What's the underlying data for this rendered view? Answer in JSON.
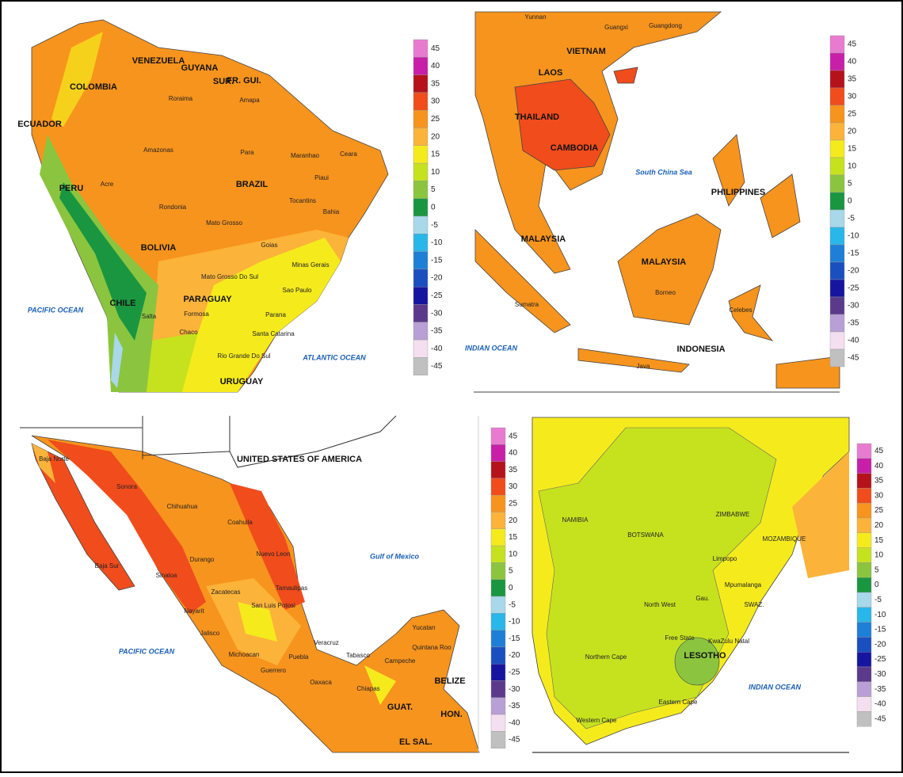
{
  "legend_colors": [
    "#e87bd0",
    "#c81fa8",
    "#b5121b",
    "#f04c1c",
    "#f7941d",
    "#fbb33a",
    "#f5eb1c",
    "#c6e21f",
    "#8bc53f",
    "#1a9641",
    "#a8d8ea",
    "#29b6e8",
    "#1e7fd6",
    "#1a4fc0",
    "#1515a0",
    "#5b3a8c",
    "#b89fd6",
    "#f4dff0",
    "#c0c0c0"
  ],
  "panels": [
    {
      "legend": {
        "labels": [
          45,
          40,
          35,
          30,
          25,
          20,
          15,
          10,
          5,
          0,
          -5,
          -10,
          -15,
          -20,
          -25,
          -30,
          -35,
          -40,
          -45
        ]
      },
      "labels": [
        "VENEZUELA",
        "GUYANA",
        "SUR.",
        "FR. GUI.",
        "COLOMBIA",
        "ECUADOR",
        "Roraima",
        "Amapa",
        "Amazonas",
        "Para",
        "Maranhao",
        "Ceara",
        "PERU",
        "Acre",
        "BRAZIL",
        "Piaui",
        "Tocantins",
        "Rondonia",
        "Bahia",
        "Mato Grosso",
        "BOLIVIA",
        "Goias",
        "Minas Gerais",
        "Mato Grosso Do Sul",
        "Sao Paulo",
        "PARAGUAY",
        "CHILE",
        "Salta",
        "Formosa",
        "Chaco",
        "Parana",
        "Santa Catarina",
        "Rio Grande Do Sul",
        "URUGUAY",
        "PACIFIC OCEAN",
        "ATLANTIC OCEAN"
      ]
    },
    {
      "legend": {
        "labels": [
          45,
          40,
          35,
          30,
          25,
          20,
          15,
          10,
          5,
          0,
          -5,
          -10,
          -15,
          -20,
          -25,
          -30,
          -35,
          -40,
          -45
        ]
      },
      "labels": [
        "Yunnan",
        "Guangxi",
        "Guangdong",
        "VIETNAM",
        "LAOS",
        "THAILAND",
        "CAMBODIA",
        "South China Sea",
        "PHILIPPINES",
        "MALAYSIA",
        "MALAYSIA",
        "Borneo",
        "Sumatra",
        "Celebes",
        "INDONESIA",
        "Java",
        "INDIAN OCEAN"
      ]
    },
    {
      "legend": {
        "labels": [
          45,
          40,
          35,
          30,
          25,
          20,
          15,
          10,
          5,
          0,
          -5,
          -10,
          -15,
          -20,
          -25,
          -30,
          -35,
          -40,
          -45
        ]
      },
      "labels": [
        "UNITED STATES OF AMERICA",
        "Baja Norte",
        "Sonora",
        "Chihuahua",
        "Coahuila",
        "Nuevo Leon",
        "Baja Sur",
        "Sinaloa",
        "Durango",
        "Tamaulipas",
        "Zacatecas",
        "Nayarit",
        "San Luis Potosi",
        "Jalisco",
        "Gulf of Mexico",
        "Veracruz",
        "Michoacan",
        "Puebla",
        "Guerrero",
        "Oaxaca",
        "Tabasco",
        "Campeche",
        "Yucatan",
        "Quintana Roo",
        "Chiapas",
        "BELIZE",
        "GUAT.",
        "HON.",
        "EL SAL.",
        "PACIFIC OCEAN"
      ]
    },
    {
      "legend": {
        "labels": [
          45,
          40,
          35,
          30,
          25,
          20,
          15,
          10,
          5,
          0,
          -5,
          -10,
          -15,
          -20,
          -25,
          -30,
          -35,
          -40,
          -45
        ]
      },
      "labels": [
        "ZIMBABWE",
        "NAMIBIA",
        "BOTSWANA",
        "MOZAMBIQUE",
        "Limpopo",
        "Mpumalanga",
        "North West",
        "Gau.",
        "SWAZ.",
        "Free State",
        "KwaZulu Natal",
        "LESOTHO",
        "Northern Cape",
        "Eastern Cape",
        "Western Cape",
        "INDIAN OCEAN"
      ]
    }
  ]
}
